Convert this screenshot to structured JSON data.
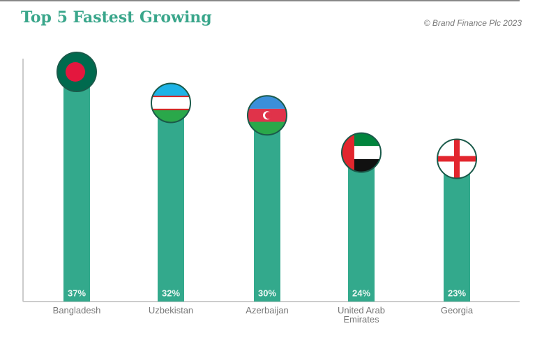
{
  "chart_data": {
    "type": "bar",
    "title": "Top 5 Fastest Growing",
    "source": "© Brand Finance Plc 2023",
    "categories": [
      "Bangladesh",
      "Uzbekistan",
      "Azerbaijan",
      "United Arab Emirates",
      "Georgia"
    ],
    "values": [
      37,
      32,
      30,
      24,
      23
    ],
    "value_labels": [
      "37%",
      "32%",
      "30%",
      "24%",
      "23%"
    ],
    "color": "#33a98c"
  }
}
